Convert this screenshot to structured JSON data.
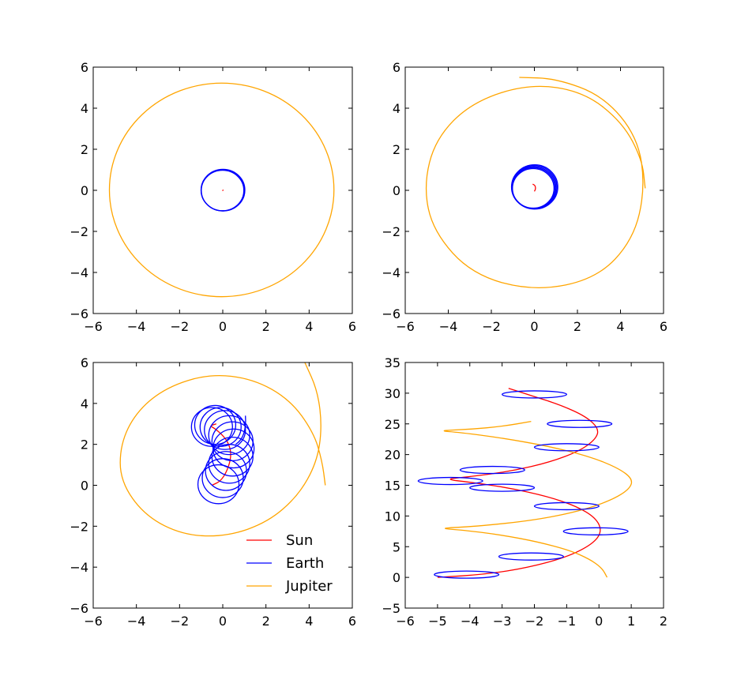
{
  "colors": {
    "sun": "#ff0000",
    "earth": "#0000ff",
    "jupiter": "#ffa500"
  },
  "legend": {
    "location": "lower-right of bottom-left panel",
    "entries": [
      {
        "label": "Sun",
        "color": "#ff0000"
      },
      {
        "label": "Earth",
        "color": "#0000ff"
      },
      {
        "label": "Jupiter",
        "color": "#ffa500"
      }
    ]
  },
  "chart_data": [
    {
      "type": "line",
      "panel": "top-left",
      "title": "",
      "xlabel": "",
      "ylabel": "",
      "xlim": [
        -6,
        6
      ],
      "ylim": [
        -6,
        6
      ],
      "xticks": [
        "−6",
        "−4",
        "−2",
        "0",
        "2",
        "4",
        "6"
      ],
      "yticks": [
        "−6",
        "−4",
        "−2",
        "0",
        "2",
        "4",
        "6"
      ],
      "grid": false,
      "series": [
        {
          "color": "#ffa500",
          "kind": "ellipse",
          "center": [
            -0.05,
            0.02
          ],
          "radius": [
            5.2,
            5.2
          ],
          "turns": 1
        },
        {
          "color": "#0000ff",
          "kind": "ring",
          "center": [
            0,
            0
          ],
          "radius": [
            1.0,
            1.0
          ],
          "width": 0.06
        },
        {
          "color": "#ff0000",
          "points": [
            [
              0,
              -0.03
            ],
            [
              0.01,
              0.02
            ],
            [
              0,
              0.03
            ]
          ]
        }
      ]
    },
    {
      "type": "line",
      "panel": "top-right",
      "title": "",
      "xlabel": "",
      "ylabel": "",
      "xlim": [
        -6,
        6
      ],
      "ylim": [
        -6,
        6
      ],
      "xticks": [
        "−6",
        "−4",
        "−2",
        "0",
        "2",
        "4",
        "6"
      ],
      "yticks": [
        "−6",
        "−4",
        "−2",
        "0",
        "2",
        "4",
        "6"
      ],
      "grid": false,
      "series": [
        {
          "color": "#ffa500",
          "kind": "spiral",
          "start": [
            -0.7,
            5.5
          ],
          "points": [
            [
              -0.7,
              5.5
            ],
            [
              1.0,
              5.45
            ],
            [
              3.2,
              4.6
            ],
            [
              4.8,
              2.6
            ],
            [
              5.15,
              0.1
            ],
            [
              4.6,
              -2.4
            ],
            [
              2.9,
              -4.3
            ],
            [
              0.0,
              -4.92
            ],
            [
              -2.9,
              -4.1
            ],
            [
              -4.7,
              -2.0
            ],
            [
              -5.15,
              0.2
            ],
            [
              -4.6,
              2.5
            ],
            [
              -2.9,
              4.3
            ],
            [
              -0.2,
              5.2
            ],
            [
              2.3,
              4.8
            ],
            [
              4.1,
              3.3
            ],
            [
              5.0,
              1.5
            ],
            [
              5.15,
              0.1
            ]
          ]
        },
        {
          "color": "#0000ff",
          "kind": "ring",
          "center": [
            -0.02,
            0.13
          ],
          "radius": [
            1.02,
            1.02
          ],
          "width": 0.22
        },
        {
          "color": "#ff0000",
          "points": [
            [
              0.0,
              -0.05
            ],
            [
              0.05,
              0.05
            ],
            [
              0.05,
              0.18
            ],
            [
              0.0,
              0.26
            ],
            [
              -0.08,
              0.3
            ]
          ]
        }
      ]
    },
    {
      "type": "line",
      "panel": "bottom-left",
      "title": "",
      "xlabel": "",
      "ylabel": "",
      "xlim": [
        -6,
        6
      ],
      "ylim": [
        -6,
        6
      ],
      "xticks": [
        "−6",
        "−4",
        "−2",
        "0",
        "2",
        "4",
        "6"
      ],
      "yticks": [
        "−6",
        "−4",
        "−2",
        "0",
        "2",
        "4",
        "6"
      ],
      "grid": false,
      "series": [
        {
          "name": "Sun",
          "color": "#ff0000",
          "points": [
            [
              -0.5,
              0.0
            ],
            [
              -0.1,
              0.2
            ],
            [
              0.2,
              0.7
            ],
            [
              0.4,
              1.4
            ],
            [
              0.3,
              2.0
            ],
            [
              0.0,
              2.45
            ],
            [
              -0.4,
              2.8
            ],
            [
              -0.6,
              2.9
            ],
            [
              -0.3,
              3.0
            ]
          ]
        },
        {
          "name": "Earth",
          "color": "#0000ff",
          "kind": "loops",
          "radius": 0.95,
          "centers": [
            [
              -0.2,
              0.05
            ],
            [
              0.0,
              0.35
            ],
            [
              0.15,
              0.7
            ],
            [
              0.3,
              1.05
            ],
            [
              0.45,
              1.4
            ],
            [
              0.5,
              1.8
            ],
            [
              0.45,
              2.15
            ],
            [
              0.3,
              2.45
            ],
            [
              0.1,
              2.7
            ],
            [
              -0.1,
              2.85
            ],
            [
              -0.35,
              2.95
            ],
            [
              -0.5,
              2.85
            ]
          ]
        },
        {
          "name": "Jupiter",
          "color": "#ffa500",
          "points": [
            [
              3.8,
              6.0
            ],
            [
              4.4,
              4.6
            ],
            [
              4.6,
              2.8
            ],
            [
              4.35,
              1.1
            ],
            [
              3.5,
              -0.5
            ],
            [
              2.1,
              -1.8
            ],
            [
              0.2,
              -2.5
            ],
            [
              -1.8,
              -2.45
            ],
            [
              -3.6,
              -1.5
            ],
            [
              -4.75,
              0.2
            ],
            [
              -4.75,
              2.0
            ],
            [
              -4.0,
              3.6
            ],
            [
              -2.6,
              4.8
            ],
            [
              -0.6,
              5.45
            ],
            [
              1.4,
              5.2
            ],
            [
              3.1,
              4.2
            ],
            [
              4.2,
              2.6
            ],
            [
              4.6,
              1.2
            ],
            [
              4.75,
              0.0
            ]
          ]
        }
      ]
    },
    {
      "type": "line",
      "panel": "bottom-right",
      "title": "",
      "xlabel": "",
      "ylabel": "",
      "xlim": [
        -6,
        2
      ],
      "ylim": [
        -5,
        35
      ],
      "xticks": [
        "−6",
        "−5",
        "−4",
        "−3",
        "−2",
        "−1",
        "0",
        "1",
        "2"
      ],
      "yticks": [
        "−5",
        "0",
        "5",
        "10",
        "15",
        "20",
        "25",
        "30",
        "35"
      ],
      "grid": false,
      "series": [
        {
          "color": "#ff0000",
          "points": [
            [
              -5.0,
              0.0
            ],
            [
              -3.5,
              0.5
            ],
            [
              -2.2,
              1.6
            ],
            [
              -1.0,
              3.3
            ],
            [
              -0.2,
              5.4
            ],
            [
              0.1,
              7.5
            ],
            [
              -0.1,
              9.7
            ],
            [
              -0.7,
              11.6
            ],
            [
              -1.6,
              13.2
            ],
            [
              -2.8,
              14.6
            ],
            [
              -4.0,
              15.5
            ],
            [
              -4.8,
              16.0
            ],
            [
              -4.0,
              16.4
            ],
            [
              -2.7,
              17.3
            ],
            [
              -1.5,
              18.8
            ],
            [
              -0.6,
              20.6
            ],
            [
              -0.1,
              22.5
            ],
            [
              0.0,
              24.2
            ],
            [
              -0.4,
              26.2
            ],
            [
              -1.2,
              28.1
            ],
            [
              -2.1,
              29.6
            ],
            [
              -2.8,
              30.8
            ]
          ]
        },
        {
          "color": "#ffa500",
          "points": [
            [
              0.25,
              0.0
            ],
            [
              0.1,
              1.5
            ],
            [
              -0.3,
              3.0
            ],
            [
              -0.9,
              4.4
            ],
            [
              -1.9,
              5.8
            ],
            [
              -3.0,
              6.9
            ],
            [
              -4.2,
              7.7
            ],
            [
              -5.0,
              8.0
            ],
            [
              -3.8,
              8.3
            ],
            [
              -2.0,
              9.3
            ],
            [
              -0.6,
              10.8
            ],
            [
              0.4,
              12.6
            ],
            [
              0.95,
              14.4
            ],
            [
              1.05,
              16.0
            ],
            [
              0.6,
              17.8
            ],
            [
              -0.3,
              19.7
            ],
            [
              -1.6,
              21.4
            ],
            [
              -3.0,
              22.7
            ],
            [
              -4.3,
              23.6
            ],
            [
              -5.0,
              23.9
            ],
            [
              -4.0,
              24.1
            ],
            [
              -3.0,
              24.6
            ],
            [
              -2.1,
              25.4
            ]
          ]
        },
        {
          "color": "#0000ff",
          "kind": "drifting-loops",
          "radius": 1.0,
          "vscale": 0.35,
          "centers": [
            [
              -4.1,
              0.45
            ],
            [
              -2.1,
              3.4
            ],
            [
              -0.1,
              7.5
            ],
            [
              -1.0,
              11.6
            ],
            [
              -3.0,
              14.6
            ],
            [
              -4.6,
              15.7
            ],
            [
              -3.3,
              17.5
            ],
            [
              -1.0,
              21.2
            ],
            [
              -0.6,
              25.0
            ],
            [
              -2.0,
              29.8
            ]
          ]
        }
      ]
    }
  ]
}
